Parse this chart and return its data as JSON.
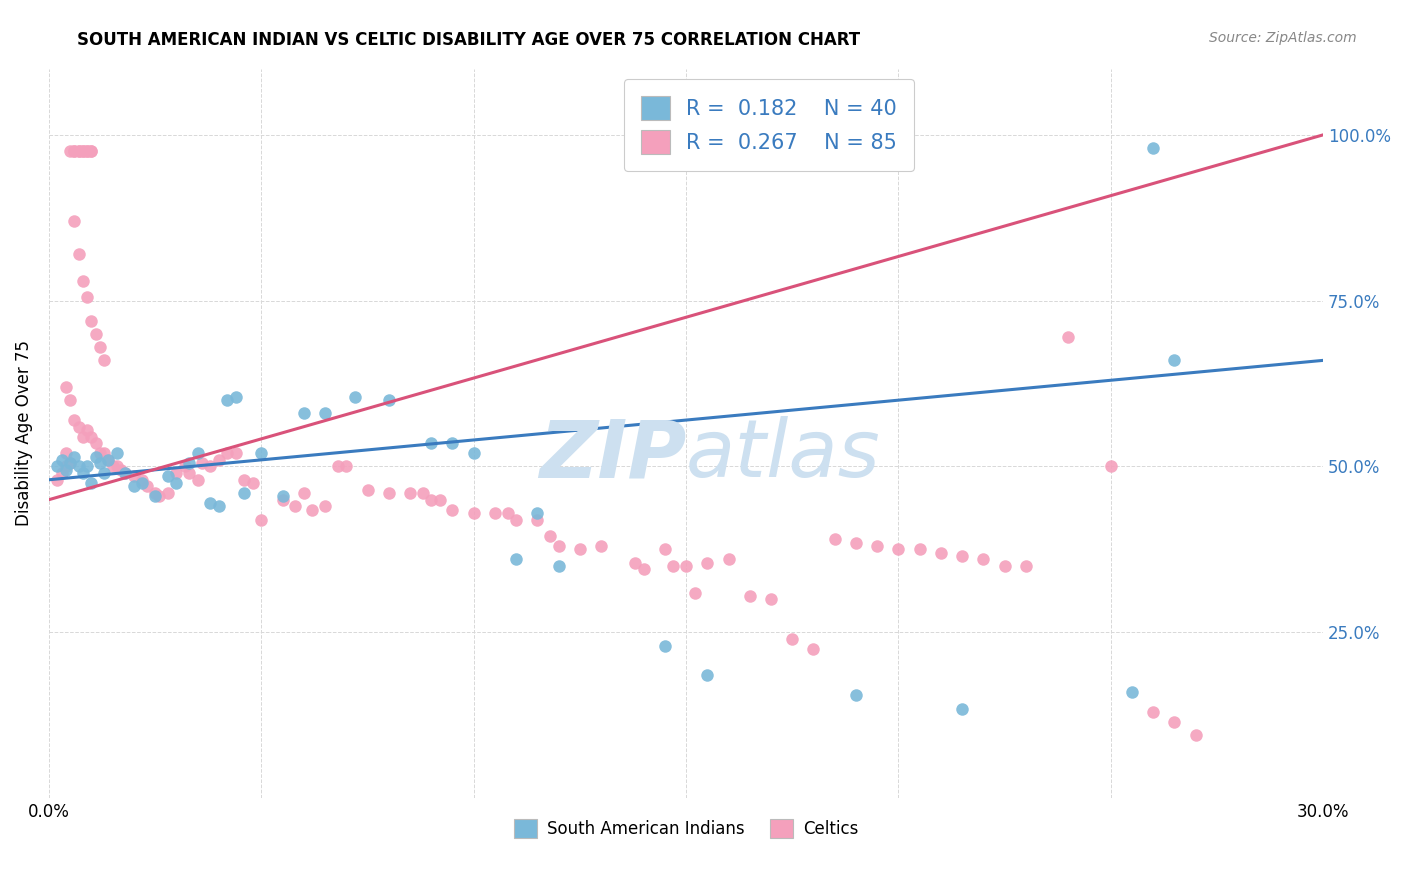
{
  "title": "SOUTH AMERICAN INDIAN VS CELTIC DISABILITY AGE OVER 75 CORRELATION CHART",
  "source": "Source: ZipAtlas.com",
  "ylabel": "Disability Age Over 75",
  "ytick_labels": [
    "100.0%",
    "75.0%",
    "50.0%",
    "25.0%"
  ],
  "ytick_values": [
    1.0,
    0.75,
    0.5,
    0.25
  ],
  "xmin": 0.0,
  "xmax": 0.3,
  "ymin": 0.0,
  "ymax": 1.1,
  "blue_color": "#7ab8d9",
  "pink_color": "#f4a0bc",
  "blue_line_color": "#3a7bbf",
  "pink_line_color": "#d9527a",
  "watermark_color": "#cde0f0",
  "blue_scatter": [
    [
      0.002,
      0.5
    ],
    [
      0.003,
      0.51
    ],
    [
      0.004,
      0.495
    ],
    [
      0.005,
      0.505
    ],
    [
      0.006,
      0.515
    ],
    [
      0.007,
      0.5
    ],
    [
      0.008,
      0.49
    ],
    [
      0.009,
      0.5
    ],
    [
      0.01,
      0.475
    ],
    [
      0.011,
      0.515
    ],
    [
      0.012,
      0.505
    ],
    [
      0.013,
      0.49
    ],
    [
      0.014,
      0.51
    ],
    [
      0.016,
      0.52
    ],
    [
      0.018,
      0.49
    ],
    [
      0.02,
      0.47
    ],
    [
      0.022,
      0.475
    ],
    [
      0.025,
      0.455
    ],
    [
      0.028,
      0.485
    ],
    [
      0.03,
      0.475
    ],
    [
      0.033,
      0.505
    ],
    [
      0.035,
      0.52
    ],
    [
      0.038,
      0.445
    ],
    [
      0.04,
      0.44
    ],
    [
      0.042,
      0.6
    ],
    [
      0.044,
      0.605
    ],
    [
      0.046,
      0.46
    ],
    [
      0.05,
      0.52
    ],
    [
      0.055,
      0.455
    ],
    [
      0.06,
      0.58
    ],
    [
      0.065,
      0.58
    ],
    [
      0.072,
      0.605
    ],
    [
      0.08,
      0.6
    ],
    [
      0.09,
      0.535
    ],
    [
      0.095,
      0.535
    ],
    [
      0.1,
      0.52
    ],
    [
      0.11,
      0.36
    ],
    [
      0.115,
      0.43
    ],
    [
      0.12,
      0.35
    ],
    [
      0.145,
      0.23
    ],
    [
      0.155,
      0.185
    ],
    [
      0.19,
      0.155
    ],
    [
      0.215,
      0.135
    ],
    [
      0.255,
      0.16
    ],
    [
      0.26,
      0.98
    ],
    [
      0.265,
      0.66
    ]
  ],
  "pink_scatter": [
    [
      0.002,
      0.48
    ],
    [
      0.003,
      0.49
    ],
    [
      0.004,
      0.5
    ],
    [
      0.004,
      0.52
    ],
    [
      0.005,
      0.505
    ],
    [
      0.005,
      0.975
    ],
    [
      0.006,
      0.975
    ],
    [
      0.006,
      0.975
    ],
    [
      0.007,
      0.975
    ],
    [
      0.007,
      0.975
    ],
    [
      0.008,
      0.975
    ],
    [
      0.008,
      0.975
    ],
    [
      0.009,
      0.975
    ],
    [
      0.009,
      0.975
    ],
    [
      0.01,
      0.975
    ],
    [
      0.01,
      0.975
    ],
    [
      0.006,
      0.87
    ],
    [
      0.007,
      0.82
    ],
    [
      0.008,
      0.78
    ],
    [
      0.009,
      0.755
    ],
    [
      0.01,
      0.72
    ],
    [
      0.011,
      0.7
    ],
    [
      0.012,
      0.68
    ],
    [
      0.013,
      0.66
    ],
    [
      0.004,
      0.62
    ],
    [
      0.005,
      0.6
    ],
    [
      0.006,
      0.57
    ],
    [
      0.007,
      0.56
    ],
    [
      0.008,
      0.545
    ],
    [
      0.009,
      0.555
    ],
    [
      0.01,
      0.545
    ],
    [
      0.011,
      0.535
    ],
    [
      0.012,
      0.52
    ],
    [
      0.013,
      0.52
    ],
    [
      0.014,
      0.51
    ],
    [
      0.015,
      0.5
    ],
    [
      0.016,
      0.5
    ],
    [
      0.017,
      0.495
    ],
    [
      0.018,
      0.49
    ],
    [
      0.02,
      0.485
    ],
    [
      0.022,
      0.48
    ],
    [
      0.023,
      0.47
    ],
    [
      0.025,
      0.46
    ],
    [
      0.026,
      0.455
    ],
    [
      0.028,
      0.46
    ],
    [
      0.03,
      0.49
    ],
    [
      0.032,
      0.5
    ],
    [
      0.033,
      0.49
    ],
    [
      0.035,
      0.48
    ],
    [
      0.036,
      0.505
    ],
    [
      0.038,
      0.5
    ],
    [
      0.04,
      0.51
    ],
    [
      0.042,
      0.52
    ],
    [
      0.044,
      0.52
    ],
    [
      0.046,
      0.48
    ],
    [
      0.048,
      0.475
    ],
    [
      0.05,
      0.42
    ],
    [
      0.055,
      0.45
    ],
    [
      0.058,
      0.44
    ],
    [
      0.06,
      0.46
    ],
    [
      0.062,
      0.435
    ],
    [
      0.065,
      0.44
    ],
    [
      0.068,
      0.5
    ],
    [
      0.07,
      0.5
    ],
    [
      0.075,
      0.465
    ],
    [
      0.08,
      0.46
    ],
    [
      0.085,
      0.46
    ],
    [
      0.088,
      0.46
    ],
    [
      0.09,
      0.45
    ],
    [
      0.092,
      0.45
    ],
    [
      0.095,
      0.435
    ],
    [
      0.1,
      0.43
    ],
    [
      0.105,
      0.43
    ],
    [
      0.108,
      0.43
    ],
    [
      0.11,
      0.42
    ],
    [
      0.115,
      0.42
    ],
    [
      0.118,
      0.395
    ],
    [
      0.12,
      0.38
    ],
    [
      0.125,
      0.375
    ],
    [
      0.13,
      0.38
    ],
    [
      0.138,
      0.355
    ],
    [
      0.14,
      0.345
    ],
    [
      0.145,
      0.375
    ],
    [
      0.147,
      0.35
    ],
    [
      0.15,
      0.35
    ],
    [
      0.152,
      0.31
    ],
    [
      0.155,
      0.355
    ],
    [
      0.16,
      0.36
    ],
    [
      0.165,
      0.305
    ],
    [
      0.17,
      0.3
    ],
    [
      0.175,
      0.24
    ],
    [
      0.18,
      0.225
    ],
    [
      0.185,
      0.39
    ],
    [
      0.19,
      0.385
    ],
    [
      0.195,
      0.38
    ],
    [
      0.2,
      0.375
    ],
    [
      0.205,
      0.375
    ],
    [
      0.21,
      0.37
    ],
    [
      0.215,
      0.365
    ],
    [
      0.22,
      0.36
    ],
    [
      0.225,
      0.35
    ],
    [
      0.23,
      0.35
    ],
    [
      0.24,
      0.695
    ],
    [
      0.25,
      0.5
    ],
    [
      0.26,
      0.13
    ],
    [
      0.265,
      0.115
    ],
    [
      0.27,
      0.095
    ]
  ],
  "blue_trendline": [
    [
      0.0,
      0.48
    ],
    [
      0.3,
      0.66
    ]
  ],
  "pink_trendline": [
    [
      0.0,
      0.45
    ],
    [
      0.3,
      1.0
    ]
  ]
}
